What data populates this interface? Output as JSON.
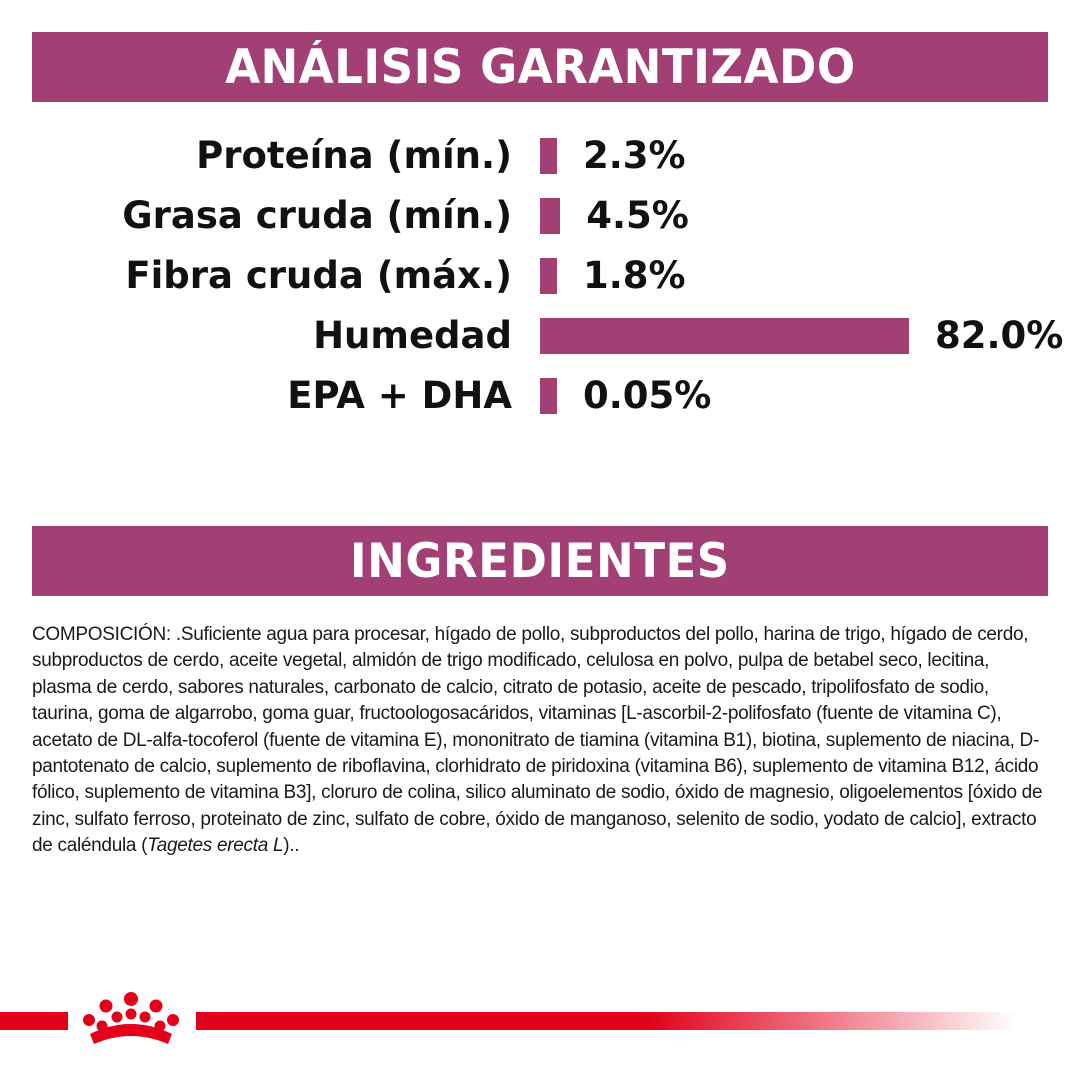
{
  "analysis": {
    "title": "ANÁLISIS GARANTIZADO"
  },
  "ingredients": {
    "title": "INGREDIENTES",
    "text_before_italic": "COMPOSICIÓN: .Suficiente agua para procesar, hígado de pollo, subproductos del pollo, harina de trigo, hígado de cerdo, subproductos de cerdo, aceite vegetal, almidón de trigo modificado, celulosa en polvo, pulpa de betabel seco, lecitina, plasma de cerdo, sabores naturales, carbonato de calcio, citrato de potasio, aceite de pescado, tripolifosfato de sodio, taurina, goma de algarrobo, goma guar, fructoologosacáridos, vitaminas [L-ascorbil-2-polifosfato (fuente de vitamina C), acetato de DL-alfa-tocoferol (fuente de vitamina E), mononitrato de tiamina (vitamina B1), biotina, suplemento de niacina, D-pantotenato de calcio, suplemento de riboflavina, clorhidrato de piridoxina (vitamina B6), suplemento de vitamina B12, ácido fólico, suplemento de vitamina B3], cloruro de colina, silico aluminato de sodio, óxido de magnesio, oligoelementos [óxido de zinc, sulfato ferroso, proteinato de zinc, sulfato de cobre, óxido de manganoso, selenito de sodio, yodato de calcio], extracto de caléndula (",
    "italic": "Tagetes erecta L",
    "text_after_italic": ").."
  },
  "colors": {
    "accent": "#a23f74",
    "brand_red": "#e2001a"
  },
  "logo": {
    "icon": "crown-icon"
  },
  "chart_data": {
    "type": "bar",
    "orientation": "horizontal",
    "categories": [
      "Proteína (mín.)",
      "Grasa cruda (mín.)",
      "Fibra cruda (máx.)",
      "Humedad",
      "EPA + DHA"
    ],
    "values": [
      2.3,
      4.5,
      1.8,
      82.0,
      0.05
    ],
    "value_labels": [
      "2.3%",
      "4.5%",
      "1.8%",
      "82.0%",
      "0.05%"
    ],
    "unit": "%"
  }
}
